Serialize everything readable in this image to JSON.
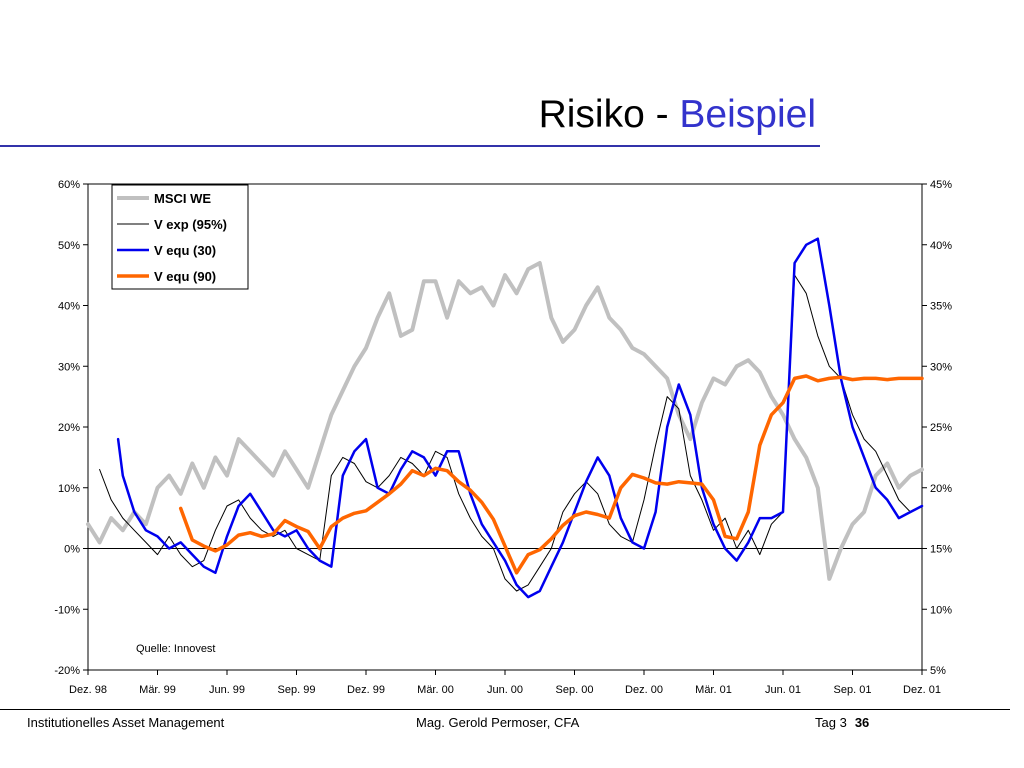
{
  "slide": {
    "title_main": "Risiko - ",
    "title_accent": "Beispiel",
    "accent_color": "#3333cc"
  },
  "footer": {
    "left": "Institutionelles Asset Management",
    "center": "Mag. Gerold Permoser, CFA",
    "day": "Tag 3",
    "page": "36"
  },
  "chart_data": {
    "type": "line",
    "title": "",
    "source_note": "Quelle: Innovest",
    "x_labels": [
      "Dez. 98",
      "Mär. 99",
      "Jun. 99",
      "Sep. 99",
      "Dez. 99",
      "Mär. 00",
      "Jun. 00",
      "Sep. 00",
      "Dez. 00",
      "Mär. 01",
      "Jun. 01",
      "Sep. 01",
      "Dez. 01"
    ],
    "x_range": [
      0,
      36
    ],
    "y_left": {
      "range": [
        -20,
        60
      ],
      "ticks": [
        -20,
        -10,
        0,
        10,
        20,
        30,
        40,
        50,
        60
      ],
      "ticklabels": [
        "-20%",
        "-10%",
        "0%",
        "10%",
        "20%",
        "30%",
        "40%",
        "50%",
        "60%"
      ]
    },
    "y_right": {
      "range": [
        5,
        45
      ],
      "ticks": [
        5,
        10,
        15,
        20,
        25,
        30,
        35,
        40,
        45
      ],
      "ticklabels": [
        "5%",
        "10%",
        "15%",
        "20%",
        "25%",
        "30%",
        "35%",
        "40%",
        "45%"
      ]
    },
    "grid": false,
    "zero_line": true,
    "legend_position": "top-left",
    "series": [
      {
        "name": "MSCI WE",
        "axis": "left",
        "color": "#c0c0c0",
        "width": 4,
        "x": [
          0,
          0.5,
          1,
          1.5,
          2,
          2.5,
          3,
          3.5,
          4,
          4.5,
          5,
          5.5,
          6,
          6.5,
          7,
          7.5,
          8,
          8.5,
          9,
          9.5,
          10,
          10.5,
          11,
          11.5,
          12,
          12.5,
          13,
          13.5,
          14,
          14.5,
          15,
          15.5,
          16,
          16.5,
          17,
          17.5,
          18,
          18.5,
          19,
          19.5,
          20,
          20.5,
          21,
          21.5,
          22,
          22.5,
          23,
          23.5,
          24,
          24.5,
          25,
          25.5,
          26,
          26.5,
          27,
          27.5,
          28,
          28.5,
          29,
          29.5,
          30,
          30.5,
          31,
          31.5,
          32,
          32.5,
          33,
          33.5,
          34,
          34.5,
          35,
          35.5,
          36
        ],
        "y": [
          4,
          1,
          5,
          3,
          6,
          4,
          10,
          12,
          9,
          14,
          10,
          15,
          12,
          18,
          16,
          14,
          12,
          16,
          13,
          10,
          16,
          22,
          26,
          30,
          33,
          38,
          42,
          35,
          36,
          44,
          44,
          38,
          44,
          42,
          43,
          40,
          45,
          42,
          46,
          47,
          38,
          34,
          36,
          40,
          43,
          38,
          36,
          33,
          32,
          30,
          28,
          22,
          18,
          24,
          28,
          27,
          30,
          31,
          29,
          25,
          22,
          18,
          15,
          10,
          -5,
          0,
          4,
          6,
          12,
          14,
          10,
          12,
          13
        ]
      },
      {
        "name": "V exp (95%)",
        "axis": "left",
        "color": "#000000",
        "width": 1,
        "x": [
          0.5,
          1,
          1.5,
          2,
          2.5,
          3,
          3.5,
          4,
          4.5,
          5,
          5.5,
          6,
          6.5,
          7,
          7.5,
          8,
          8.5,
          9,
          9.5,
          10,
          10.5,
          11,
          11.5,
          12,
          12.5,
          13,
          13.5,
          14,
          14.5,
          15,
          15.5,
          16,
          16.5,
          17,
          17.5,
          18,
          18.5,
          19,
          19.5,
          20,
          20.5,
          21,
          21.5,
          22,
          22.5,
          23,
          23.5,
          24,
          24.5,
          25,
          25.5,
          26,
          26.5,
          27,
          27.5,
          28,
          28.5,
          29,
          29.5,
          30,
          30.5,
          31,
          31.5,
          32,
          32.5,
          33,
          33.5,
          34,
          34.5,
          35,
          35.5,
          36
        ],
        "y": [
          13,
          8,
          5,
          3,
          1,
          -1,
          2,
          -1,
          -3,
          -2,
          3,
          7,
          8,
          5,
          3,
          2,
          3,
          0,
          -1,
          -2,
          12,
          15,
          14,
          11,
          10,
          12,
          15,
          14,
          12,
          16,
          15,
          9,
          5,
          2,
          0,
          -5,
          -7,
          -6,
          -3,
          0,
          6,
          9,
          11,
          9,
          4,
          2,
          1,
          8,
          17,
          25,
          23,
          12,
          8,
          3,
          5,
          0,
          3,
          -1,
          4,
          6,
          45,
          42,
          35,
          30,
          28,
          22,
          18,
          16,
          12,
          8,
          6,
          7
        ]
      },
      {
        "name": "V equ (30)",
        "axis": "left",
        "color": "#0000ee",
        "width": 2.5,
        "x": [
          1.3,
          1.5,
          2,
          2.5,
          3,
          3.5,
          4,
          4.5,
          5,
          5.5,
          6,
          6.5,
          7,
          7.5,
          8,
          8.5,
          9,
          9.5,
          10,
          10.5,
          11,
          11.5,
          12,
          12.5,
          13,
          13.5,
          14,
          14.5,
          15,
          15.5,
          16,
          16.5,
          17,
          17.5,
          18,
          18.5,
          19,
          19.5,
          20,
          20.5,
          21,
          21.5,
          22,
          22.5,
          23,
          23.5,
          24,
          24.5,
          25,
          25.5,
          26,
          26.5,
          27,
          27.5,
          28,
          28.5,
          29,
          29.5,
          30,
          30.5,
          31,
          31.5,
          32,
          32.5,
          33,
          33.5,
          34,
          34.5,
          35,
          35.5,
          36
        ],
        "y": [
          18,
          12,
          6,
          3,
          2,
          0,
          1,
          -1,
          -3,
          -4,
          2,
          7,
          9,
          6,
          3,
          2,
          3,
          0,
          -2,
          -3,
          12,
          16,
          18,
          10,
          9,
          13,
          16,
          15,
          12,
          16,
          16,
          9,
          4,
          1,
          -2,
          -6,
          -8,
          -7,
          -3,
          1,
          6,
          11,
          15,
          12,
          5,
          1,
          0,
          6,
          20,
          27,
          22,
          10,
          4,
          0,
          -2,
          1,
          5,
          5,
          6,
          47,
          50,
          51,
          40,
          28,
          20,
          15,
          10,
          8,
          5,
          6,
          7
        ]
      },
      {
        "name": "V equ (90)",
        "axis": "right",
        "color": "#ff6600",
        "width": 3.5,
        "x": [
          4,
          4.5,
          5,
          5.5,
          6,
          6.5,
          7,
          7.5,
          8,
          8.5,
          9,
          9.5,
          10,
          10.5,
          11,
          11.5,
          12,
          12.5,
          13,
          13.5,
          14,
          14.5,
          15,
          15.5,
          16,
          16.5,
          17,
          17.5,
          18,
          18.5,
          19,
          19.5,
          20,
          20.5,
          21,
          21.5,
          22,
          22.5,
          23,
          23.5,
          24,
          24.5,
          25,
          25.5,
          26,
          26.5,
          27,
          27.5,
          28,
          28.5,
          29,
          29.5,
          30,
          30.5,
          31,
          31.5,
          32,
          32.5,
          33,
          33.5,
          34,
          34.5,
          35,
          35.5,
          36
        ],
        "y": [
          18.3,
          15.7,
          15.2,
          14.8,
          15.3,
          16.1,
          16.3,
          16.0,
          16.2,
          17.3,
          16.8,
          16.4,
          15.0,
          16.8,
          17.5,
          17.9,
          18.1,
          18.8,
          19.5,
          20.3,
          21.4,
          21.0,
          21.6,
          21.4,
          20.5,
          19.8,
          18.8,
          17.4,
          15.2,
          13.0,
          14.5,
          14.9,
          15.8,
          16.9,
          17.7,
          18.0,
          17.8,
          17.5,
          20.0,
          21.1,
          20.8,
          20.4,
          20.3,
          20.5,
          20.4,
          20.3,
          19.0,
          16.0,
          15.8,
          18.0,
          23.5,
          26.0,
          27.0,
          29.0,
          29.2,
          28.8,
          29.0,
          29.1,
          28.9,
          29.0,
          29.0,
          28.9,
          29.0,
          29.0,
          29.0
        ]
      }
    ]
  }
}
